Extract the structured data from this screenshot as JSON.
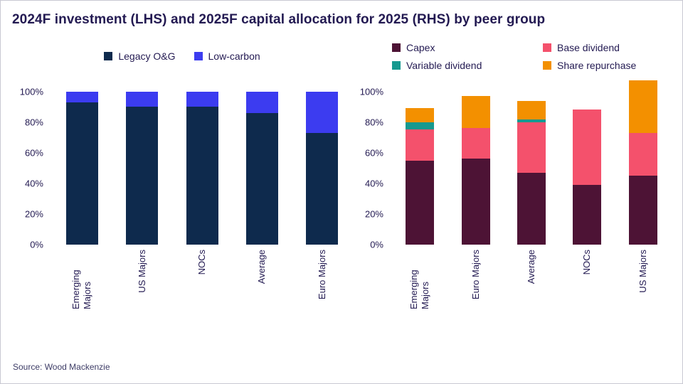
{
  "title": "2024F investment (LHS) and 2025F capital allocation for 2025 (RHS) by peer group",
  "source": "Source: Wood Mackenzie",
  "colors": {
    "title_ink": "#231a52",
    "legacy_og": "#0e2a4d",
    "low_carbon": "#3c3cf0",
    "capex": "#4d1335",
    "base_dividend": "#f4516c",
    "variable_dividend": "#17998f",
    "share_repurchase": "#f39000"
  },
  "chart_data": [
    {
      "type": "bar",
      "stacked": true,
      "title": "2024F investment (LHS)",
      "categories": [
        "Emerging Majors",
        "US Majors",
        "NOCs",
        "Average",
        "Euro Majors"
      ],
      "series": [
        {
          "name": "Legacy O&G",
          "color_key": "legacy_og",
          "values": [
            93,
            90,
            90,
            86,
            73
          ]
        },
        {
          "name": "Low-carbon",
          "color_key": "low_carbon",
          "values": [
            7,
            10,
            10,
            14,
            27
          ]
        }
      ],
      "ytick_values": [
        0,
        20,
        40,
        60,
        80,
        100
      ],
      "ytick_labels": [
        "0%",
        "20%",
        "40%",
        "60%",
        "80%",
        "100%"
      ],
      "ylim": [
        0,
        110
      ],
      "grid": false,
      "legend_position": "top"
    },
    {
      "type": "bar",
      "stacked": true,
      "title": "2025F capital allocation for 2025 (RHS)",
      "categories": [
        "Emerging Majors",
        "Euro Majors",
        "Average",
        "NOCs",
        "US Majors"
      ],
      "series": [
        {
          "name": "Capex",
          "color_key": "capex",
          "values": [
            55,
            56,
            47,
            39,
            45
          ]
        },
        {
          "name": "Base dividend",
          "color_key": "base_dividend",
          "values": [
            20,
            20,
            33,
            49,
            28
          ]
        },
        {
          "name": "Variable dividend",
          "color_key": "variable_dividend",
          "values": [
            5,
            0,
            1.5,
            0,
            0
          ]
        },
        {
          "name": "Share repurchase",
          "color_key": "share_repurchase",
          "values": [
            9,
            21,
            12.5,
            0,
            34
          ]
        }
      ],
      "ytick_values": [
        0,
        20,
        40,
        60,
        80,
        100
      ],
      "ytick_labels": [
        "0%",
        "20%",
        "40%",
        "60%",
        "80%",
        "100%"
      ],
      "ylim": [
        0,
        110
      ],
      "grid": false,
      "legend_position": "top"
    }
  ]
}
